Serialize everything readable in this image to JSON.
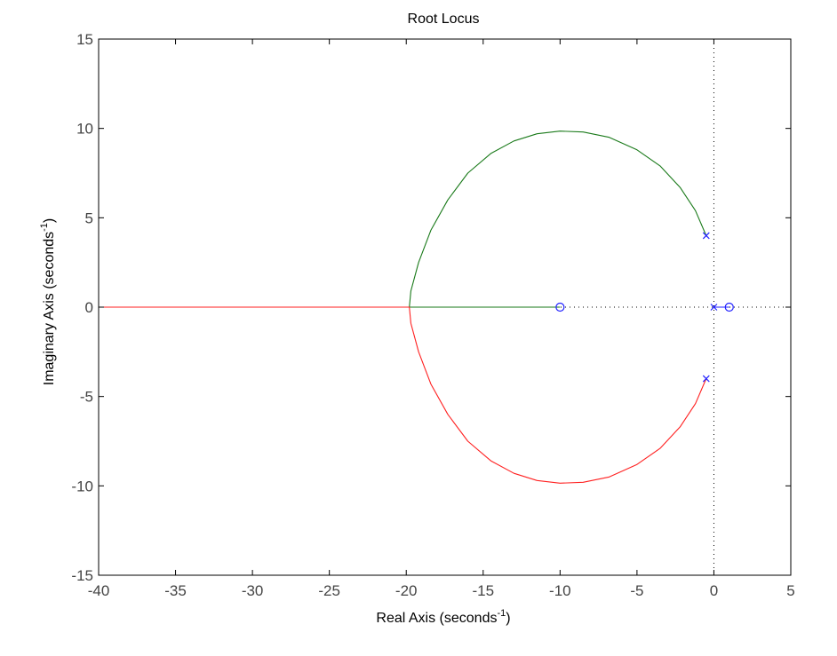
{
  "chart_data": {
    "type": "line",
    "title": "Root Locus",
    "xlabel": {
      "text": "Real Axis (seconds",
      "sup": "-1",
      "close": ")"
    },
    "ylabel": {
      "text": "Imaginary Axis (seconds",
      "sup": "-1",
      "close": ")"
    },
    "xlim": [
      -40,
      5
    ],
    "ylim": [
      -15,
      15
    ],
    "xticks": [
      -40,
      -35,
      -30,
      -25,
      -20,
      -15,
      -10,
      -5,
      0,
      5
    ],
    "yticks": [
      -15,
      -10,
      -5,
      0,
      5,
      10,
      15
    ],
    "grid": false,
    "colors": {
      "branch_upper": "#1a7a1a",
      "branch_lower": "#ff2020",
      "markers": "#2020ff",
      "axes_lines": "#000000"
    },
    "series": [
      {
        "color": "#1a7a1a",
        "points": [
          [
            -0.5,
            4
          ],
          [
            -1.2,
            5.4
          ],
          [
            -2.2,
            6.7
          ],
          [
            -3.5,
            7.9
          ],
          [
            -5,
            8.8
          ],
          [
            -6.8,
            9.5
          ],
          [
            -8.5,
            9.8
          ],
          [
            -10,
            9.85
          ],
          [
            -11.5,
            9.7
          ],
          [
            -13,
            9.3
          ],
          [
            -14.5,
            8.6
          ],
          [
            -16,
            7.5
          ],
          [
            -17.3,
            6
          ],
          [
            -18.4,
            4.3
          ],
          [
            -19.2,
            2.5
          ],
          [
            -19.7,
            0.9
          ],
          [
            -19.8,
            0
          ],
          [
            -15,
            0
          ],
          [
            -10,
            0
          ]
        ]
      },
      {
        "color": "#ff2020",
        "points": [
          [
            -0.5,
            -4
          ],
          [
            -1.2,
            -5.4
          ],
          [
            -2.2,
            -6.7
          ],
          [
            -3.5,
            -7.9
          ],
          [
            -5,
            -8.8
          ],
          [
            -6.8,
            -9.5
          ],
          [
            -8.5,
            -9.8
          ],
          [
            -10,
            -9.85
          ],
          [
            -11.5,
            -9.7
          ],
          [
            -13,
            -9.3
          ],
          [
            -14.5,
            -8.6
          ],
          [
            -16,
            -7.5
          ],
          [
            -17.3,
            -6
          ],
          [
            -18.4,
            -4.3
          ],
          [
            -19.2,
            -2.5
          ],
          [
            -19.7,
            -0.9
          ],
          [
            -19.8,
            0
          ],
          [
            -25,
            0
          ],
          [
            -30,
            0
          ],
          [
            -35,
            0
          ],
          [
            -40,
            0
          ]
        ]
      },
      {
        "color": "#2020ff",
        "points": [
          [
            0,
            0
          ],
          [
            1,
            0
          ]
        ]
      }
    ],
    "poles": [
      [
        -0.5,
        4
      ],
      [
        -0.5,
        -4
      ],
      [
        0,
        0
      ]
    ],
    "zeros": [
      [
        -10,
        0
      ],
      [
        1,
        0
      ]
    ]
  }
}
